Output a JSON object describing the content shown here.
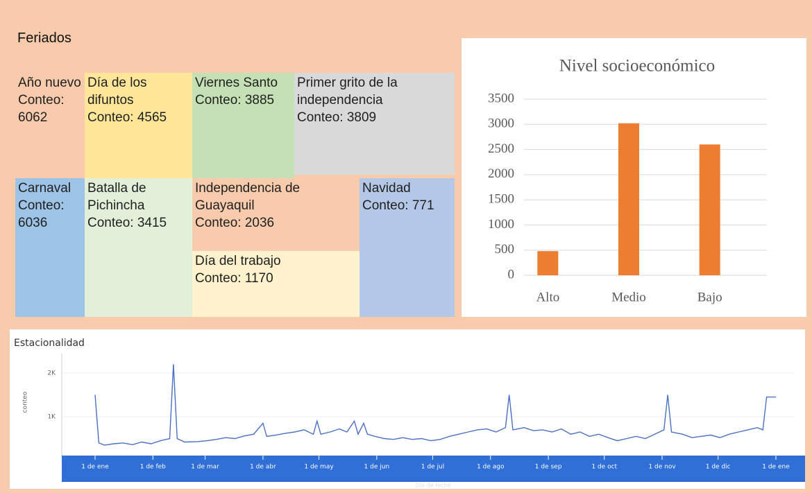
{
  "chart_data": [
    {
      "type": "treemap",
      "title": "Feriados",
      "categories": [
        "Año nuevo",
        "Día de los difuntos",
        "Viernes Santo",
        "Primer grito de la independencia",
        "Carnaval",
        "Batalla de Pichincha",
        "Independencia de Guayaquil",
        "Día del trabajo",
        "Navidad"
      ],
      "values": [
        6062,
        4565,
        3885,
        3809,
        6036,
        3415,
        2036,
        1170,
        771
      ],
      "value_labels": [
        "Conteo: 6062",
        "Conteo: 4565",
        "Conteo: 3885",
        "Conteo: 3809",
        "Conteo: 6036",
        "Conteo: 3415",
        "Conteo: 2036",
        "Conteo: 1170",
        "Conteo: 771"
      ],
      "colors": [
        "#f8cbad",
        "#ffe699",
        "#c5e0b4",
        "#d9d9d9",
        "#9dc3e6",
        "#e2f0d9",
        "#f8cbad",
        "#fff2cc",
        "#b4c7e7"
      ]
    },
    {
      "type": "bar",
      "title": "Nivel socioeconómico",
      "categories": [
        "Alto",
        "Medio",
        "Bajo"
      ],
      "values": [
        480,
        3020,
        2600
      ],
      "color": "#ed7d31",
      "ylim": [
        0,
        3500
      ],
      "yticks": [
        0,
        500,
        1000,
        1500,
        2000,
        2500,
        3000,
        3500
      ],
      "grid": true
    },
    {
      "type": "line",
      "title": "Estacionalidad",
      "y_label": "conteo",
      "x_label": "Día de fecha",
      "color": "#4a6fc4",
      "x": [
        0,
        2,
        5,
        10,
        15,
        20,
        25,
        30,
        35,
        40,
        42,
        44,
        48,
        55,
        60,
        65,
        70,
        75,
        80,
        85,
        90,
        92,
        97,
        102,
        107,
        112,
        117,
        119,
        121,
        126,
        131,
        135,
        139,
        141,
        144,
        146,
        150,
        155,
        160,
        165,
        170,
        175,
        180,
        185,
        190,
        195,
        200,
        205,
        210,
        215,
        220,
        222,
        224,
        230,
        235,
        240,
        245,
        250,
        255,
        260,
        265,
        270,
        275,
        280,
        285,
        290,
        295,
        300,
        305,
        307,
        309,
        315,
        320,
        325,
        330,
        335,
        340,
        345,
        350,
        355,
        358,
        360,
        365
      ],
      "values": [
        1500,
        400,
        350,
        380,
        400,
        360,
        420,
        380,
        450,
        500,
        2200,
        500,
        420,
        430,
        450,
        480,
        520,
        500,
        560,
        600,
        850,
        550,
        580,
        620,
        650,
        700,
        600,
        900,
        600,
        650,
        720,
        650,
        900,
        600,
        850,
        600,
        550,
        500,
        480,
        520,
        480,
        500,
        450,
        480,
        550,
        600,
        650,
        700,
        720,
        650,
        750,
        1500,
        700,
        750,
        680,
        700,
        650,
        720,
        600,
        650,
        550,
        600,
        520,
        450,
        500,
        550,
        500,
        600,
        700,
        1500,
        650,
        600,
        520,
        550,
        580,
        520,
        600,
        650,
        700,
        750,
        700,
        1450,
        1450
      ],
      "xlim": [
        0,
        365
      ],
      "xticks": [
        {
          "value": 0,
          "label": "1 de ene"
        },
        {
          "value": 31,
          "label": "1 de feb"
        },
        {
          "value": 59,
          "label": "1 de mar"
        },
        {
          "value": 90,
          "label": "1 de abr"
        },
        {
          "value": 120,
          "label": "1 de may"
        },
        {
          "value": 151,
          "label": "1 de jun"
        },
        {
          "value": 181,
          "label": "1 de jul"
        },
        {
          "value": 212,
          "label": "1 de ago"
        },
        {
          "value": 243,
          "label": "1 de sep"
        },
        {
          "value": 273,
          "label": "1 de oct"
        },
        {
          "value": 304,
          "label": "1 de nov"
        },
        {
          "value": 334,
          "label": "1 de dic"
        },
        {
          "value": 365,
          "label": "1 de ene"
        }
      ],
      "ylim": [
        0,
        2300
      ],
      "yticks": [
        {
          "value": 1000,
          "label": "1K"
        },
        {
          "value": 2000,
          "label": "2K"
        }
      ],
      "grid": true
    }
  ]
}
